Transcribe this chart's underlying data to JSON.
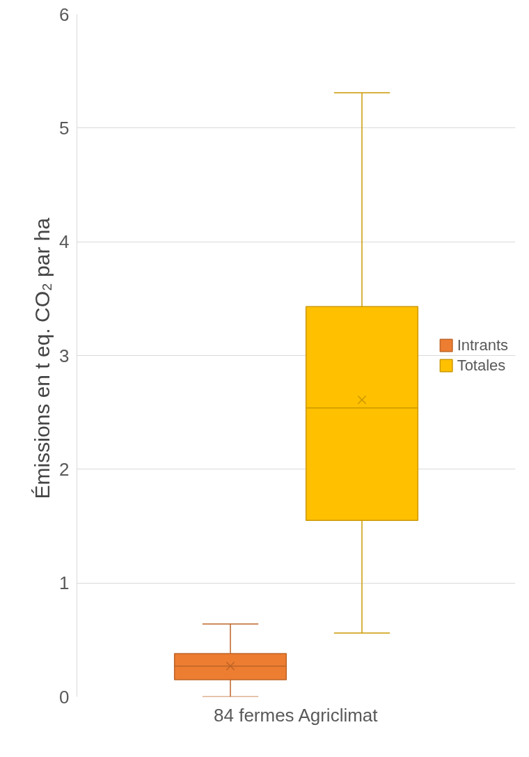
{
  "chart_data": {
    "type": "box",
    "categories": [
      "84 fermes Agriclimat"
    ],
    "ylabel": "Émissions en t eq. CO₂  par ha",
    "ylim": [
      0,
      6
    ],
    "yticks": [
      0,
      1,
      2,
      3,
      4,
      5,
      6
    ],
    "grid": "y",
    "legend": "right",
    "series": [
      {
        "name": "Intrants",
        "color": "#ed7d31",
        "boxes": [
          {
            "low": 0,
            "q1": 0.15,
            "median": 0.27,
            "q3": 0.38,
            "high": 0.64,
            "mean": 0.27
          }
        ]
      },
      {
        "name": "Totales",
        "color": "#ffc000",
        "boxes": [
          {
            "low": 0.56,
            "q1": 1.55,
            "median": 2.54,
            "q3": 3.43,
            "high": 5.31,
            "mean": 2.61
          }
        ]
      }
    ]
  }
}
